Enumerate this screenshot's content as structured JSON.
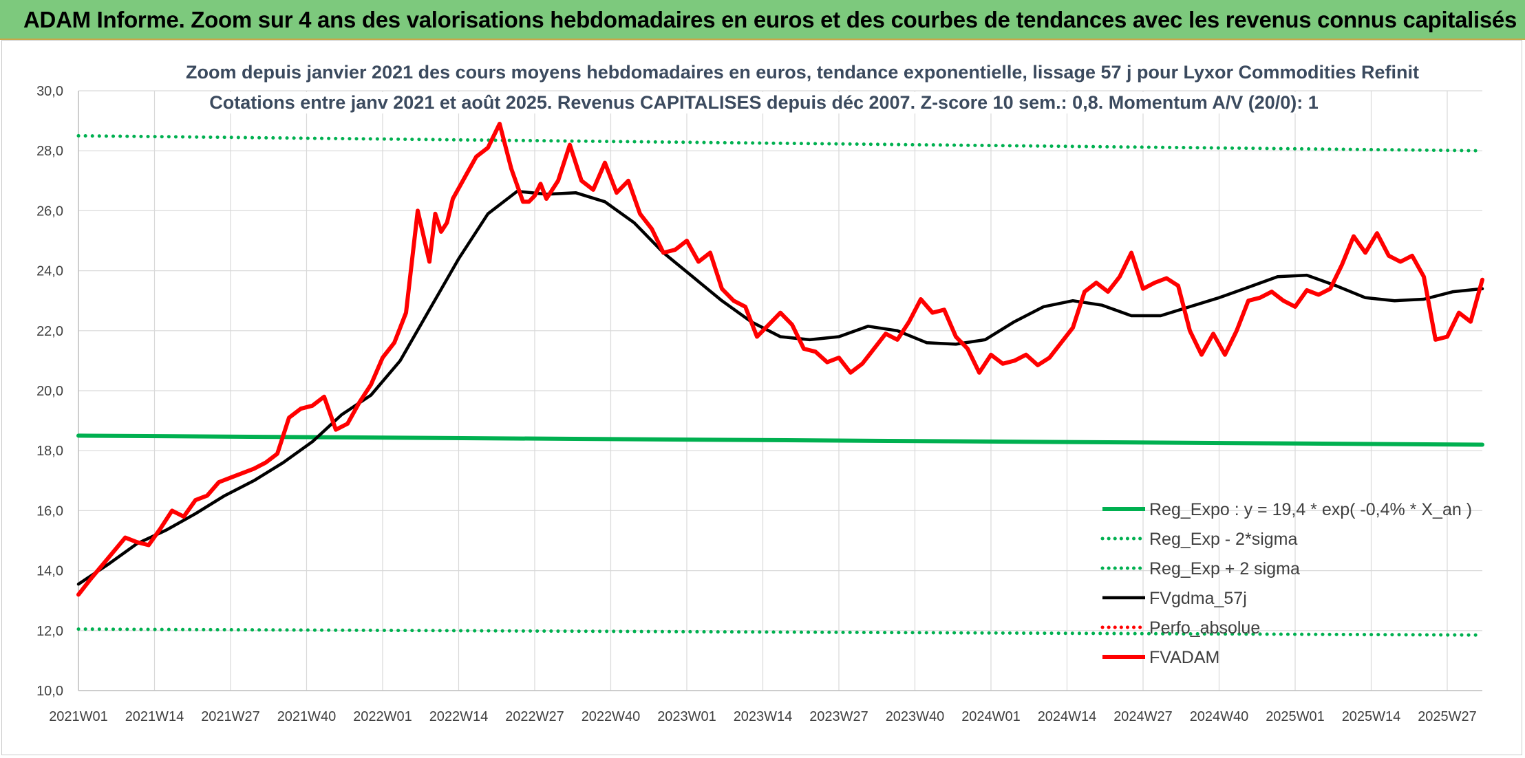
{
  "header": {
    "title": "ADAM Informe. Zoom sur 4 ans des valorisations hebdomadaires en euros et des courbes de tendances avec les revenus connus capitalisés"
  },
  "chart_data": {
    "type": "line",
    "title": "Zoom depuis janvier 2021 des cours moyens hebdomadaires en euros, tendance exponentielle, lissage 57 j pour Lyxor Commodities Refinit",
    "subtitle": "Cotations entre janv 2021 et août 2025. Revenus CAPITALISES depuis déc 2007. Z-score 10 sem.: 0,8. Momentum A/V (20/0): 1",
    "xlabel": "",
    "ylabel": "",
    "ylim": [
      10.0,
      30.0
    ],
    "y_ticks": [
      "10,0",
      "12,0",
      "14,0",
      "16,0",
      "18,0",
      "20,0",
      "22,0",
      "24,0",
      "26,0",
      "28,0",
      "30,0"
    ],
    "x_ticks": [
      "2021W01",
      "2021W14",
      "2021W27",
      "2021W40",
      "2022W01",
      "2022W14",
      "2022W27",
      "2022W40",
      "2023W01",
      "2023W14",
      "2023W27",
      "2023W40",
      "2024W01",
      "2024W14",
      "2024W27",
      "2024W40",
      "2025W01",
      "2025W14",
      "2025W27"
    ],
    "x_range_weeks": [
      0,
      240
    ],
    "grid": "vertical and horizontal",
    "legend_position": "bottom-right inside plot",
    "series": [
      {
        "name": "Reg_Expo : y = 19,4 * exp( -0,4% *  X_an )",
        "color": "#00b050",
        "style": "solid",
        "x": [
          0,
          240
        ],
        "values": [
          18.5,
          18.2
        ]
      },
      {
        "name": "Reg_Exp - 2*sigma",
        "color": "#00b050",
        "style": "dotted",
        "x": [
          0,
          240
        ],
        "values": [
          12.05,
          11.85
        ]
      },
      {
        "name": "Reg_Exp + 2 sigma",
        "color": "#00b050",
        "style": "dotted",
        "x": [
          0,
          240
        ],
        "values": [
          28.5,
          28.0
        ]
      },
      {
        "name": "FVgdma_57j",
        "color": "#000000",
        "style": "solid",
        "x": [
          0,
          5,
          10,
          15,
          20,
          25,
          30,
          35,
          40,
          45,
          50,
          55,
          60,
          65,
          70,
          75,
          80,
          85,
          90,
          95,
          100,
          105,
          110,
          115,
          120,
          125,
          130,
          135,
          140,
          145,
          150,
          155,
          160,
          165,
          170,
          175,
          180,
          185,
          190,
          195,
          200,
          205,
          210,
          215,
          220,
          225,
          230,
          235,
          240
        ],
        "values": [
          13.55,
          14.2,
          14.9,
          15.35,
          15.9,
          16.5,
          17.0,
          17.6,
          18.3,
          19.2,
          19.85,
          21.0,
          22.7,
          24.4,
          25.9,
          26.65,
          26.55,
          26.6,
          26.3,
          25.6,
          24.6,
          23.8,
          23.0,
          22.3,
          21.8,
          21.7,
          21.8,
          22.15,
          22.0,
          21.6,
          21.55,
          21.7,
          22.3,
          22.8,
          23.0,
          22.85,
          22.5,
          22.5,
          22.8,
          23.1,
          23.45,
          23.8,
          23.85,
          23.5,
          23.1,
          23.0,
          23.05,
          23.3,
          23.4
        ]
      },
      {
        "name": "Perfo_absolue",
        "color": "#ff0000",
        "style": "dotted",
        "x": [],
        "values": []
      },
      {
        "name": "FVADAM",
        "color": "#ff0000",
        "style": "solid",
        "x": [
          0,
          2,
          5,
          8,
          10,
          12,
          14,
          16,
          18,
          20,
          22,
          24,
          26,
          28,
          30,
          32,
          34,
          36,
          38,
          40,
          42,
          44,
          46,
          48,
          50,
          52,
          54,
          56,
          58,
          60,
          61,
          62,
          63,
          64,
          66,
          68,
          70,
          72,
          74,
          76,
          77,
          78,
          79,
          80,
          82,
          84,
          86,
          88,
          90,
          92,
          94,
          96,
          98,
          100,
          102,
          104,
          106,
          108,
          110,
          112,
          114,
          116,
          118,
          120,
          122,
          124,
          126,
          128,
          130,
          132,
          134,
          136,
          138,
          140,
          142,
          144,
          146,
          148,
          150,
          152,
          154,
          156,
          158,
          160,
          162,
          164,
          166,
          168,
          170,
          172,
          174,
          176,
          178,
          180,
          182,
          184,
          186,
          188,
          190,
          192,
          194,
          196,
          198,
          200,
          202,
          204,
          206,
          208,
          210,
          212,
          214,
          216,
          218,
          220,
          222,
          224,
          226,
          228,
          230,
          232,
          234,
          236,
          238,
          240
        ],
        "values": [
          13.2,
          13.7,
          14.4,
          15.1,
          14.95,
          14.85,
          15.4,
          16.0,
          15.8,
          16.35,
          16.5,
          16.95,
          17.1,
          17.25,
          17.4,
          17.6,
          17.9,
          19.1,
          19.4,
          19.5,
          19.8,
          18.7,
          18.9,
          19.6,
          20.2,
          21.1,
          21.6,
          22.6,
          26.0,
          24.3,
          25.9,
          25.3,
          25.6,
          26.4,
          27.1,
          27.8,
          28.1,
          28.9,
          27.4,
          26.3,
          26.3,
          26.5,
          26.9,
          26.4,
          27.0,
          28.2,
          27.0,
          26.7,
          27.6,
          26.6,
          27.0,
          25.9,
          25.4,
          24.6,
          24.7,
          25.0,
          24.3,
          24.6,
          23.4,
          23.0,
          22.8,
          21.8,
          22.2,
          22.6,
          22.2,
          21.4,
          21.3,
          20.95,
          21.1,
          20.6,
          20.9,
          21.4,
          21.9,
          21.7,
          22.3,
          23.05,
          22.6,
          22.7,
          21.8,
          21.4,
          20.6,
          21.2,
          20.9,
          21.0,
          21.2,
          20.85,
          21.1,
          21.6,
          22.1,
          23.3,
          23.6,
          23.3,
          23.8,
          24.6,
          23.4,
          23.6,
          23.75,
          23.5,
          22.0,
          21.2,
          21.9,
          21.2,
          22.0,
          23.0,
          23.1,
          23.3,
          23.0,
          22.8,
          23.35,
          23.2,
          23.4,
          24.2,
          25.15,
          24.6,
          25.25,
          24.5,
          24.3,
          24.5,
          23.8,
          21.7,
          21.8,
          22.6,
          22.3,
          23.7
        ]
      }
    ]
  }
}
